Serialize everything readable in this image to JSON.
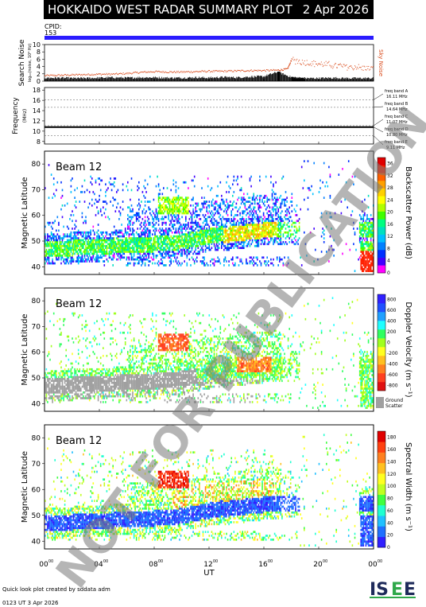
{
  "header": {
    "title": "HOKKAIDO WEST RADAR SUMMARY PLOT",
    "date": "2 Apr 2026",
    "cpid_label": "CPID:",
    "cpid_value": "153"
  },
  "colors": {
    "cpid_bar": "#2a1bff",
    "noise_line": "#000000",
    "sky_noise": "#d94a1a",
    "ground_scatter": "#a0a0a0"
  },
  "chart_data": [
    {
      "type": "line",
      "name": "search-noise",
      "ylabel": "Search Noise",
      "yunits": "log₁₀(noise, 10⁴ Hz)",
      "ylim": [
        0,
        10
      ],
      "ticks": [
        "0",
        "2",
        "4",
        "6",
        "8",
        "10"
      ],
      "tick_values": [
        0,
        2,
        4,
        6,
        8,
        10
      ],
      "xlim": [
        0,
        24
      ],
      "series": [
        {
          "name": "Search Noise",
          "x": [
            0,
            1,
            2,
            3,
            4,
            5,
            6,
            7,
            8,
            9,
            10,
            11,
            12,
            13,
            14,
            15,
            16,
            17,
            18,
            18.5,
            19,
            20,
            21,
            22,
            23,
            24
          ],
          "y": [
            0.6,
            0.6,
            0.5,
            0.5,
            0.6,
            0.7,
            0.6,
            0.7,
            0.7,
            0.6,
            0.6,
            0.7,
            0.6,
            0.8,
            0.7,
            0.9,
            1.0,
            2.2,
            0.8,
            0.6,
            0.5,
            0.5,
            0.6,
            0.5,
            0.5,
            0.5
          ]
        },
        {
          "name": "Sky Noise",
          "x": [
            0,
            1,
            2,
            3,
            4,
            5,
            6,
            7,
            8,
            9,
            10,
            11,
            12,
            13,
            14,
            15,
            16,
            17,
            17.7,
            18,
            19,
            20,
            21,
            22,
            23,
            24
          ],
          "y": [
            1.6,
            1.7,
            1.8,
            1.9,
            2.0,
            2.0,
            2.2,
            2.5,
            2.7,
            2.6,
            2.6,
            2.7,
            2.8,
            2.8,
            2.9,
            3.0,
            3.0,
            3.1,
            3.4,
            6.0,
            5.2,
            4.8,
            4.4,
            4.1,
            3.8,
            3.4
          ]
        }
      ],
      "legend_label": "Sky Noise"
    },
    {
      "type": "line",
      "name": "frequency",
      "ylabel": "Frequency",
      "yunits": "(MHz)",
      "ylim": [
        7.5,
        18.5
      ],
      "ticks": [
        "8",
        "10",
        "12",
        "14",
        "16",
        "18"
      ],
      "tick_values": [
        8,
        10,
        12,
        14,
        16,
        18
      ],
      "xlim": [
        0,
        24
      ],
      "bands": [
        {
          "label": "freq band A",
          "value": "16.11 MHz",
          "mhz": 16.11
        },
        {
          "label": "freq band B",
          "value": "14.64 MHz",
          "mhz": 14.64
        },
        {
          "label": "freq band C",
          "value": "11.07 MHz",
          "mhz": 11.07
        },
        {
          "label": "freq band D",
          "value": "10.80 MHz",
          "mhz": 10.8
        },
        {
          "label": "freq band E",
          "value": "9.11 MHz",
          "mhz": 9.11
        }
      ],
      "active_mhz": 10.8
    },
    {
      "type": "heatmap",
      "name": "backscatter-power",
      "beam": "Beam 12",
      "ylabel": "Magnetic Latitude",
      "ylim": [
        37,
        85
      ],
      "ticks": [
        "40",
        "50",
        "60",
        "70",
        "80"
      ],
      "tick_values": [
        40,
        50,
        60,
        70,
        80
      ],
      "colorbar_label": "Backscatter Power (dB)",
      "colorbar_ticks": [
        "0",
        "4",
        "8",
        "12",
        "16",
        "20",
        "24",
        "28",
        "32",
        "36"
      ],
      "colorbar_tick_values": [
        0,
        4,
        8,
        12,
        16,
        20,
        24,
        28,
        32,
        36
      ],
      "colorbar_range": [
        0,
        38
      ]
    },
    {
      "type": "heatmap",
      "name": "doppler-velocity",
      "beam": "Beam 12",
      "ylabel": "Magnetic Latitude",
      "ylim": [
        37,
        85
      ],
      "ticks": [
        "40",
        "50",
        "60",
        "70",
        "80"
      ],
      "tick_values": [
        40,
        50,
        60,
        70,
        80
      ],
      "colorbar_label": "Doppler Velocity (m s⁻¹)",
      "colorbar_ticks": [
        "800",
        "600",
        "400",
        "200",
        "0",
        "-200",
        "-400",
        "-600",
        "-800"
      ],
      "colorbar_tick_values": [
        800,
        600,
        400,
        200,
        0,
        -200,
        -400,
        -600,
        -800
      ],
      "colorbar_range": [
        -900,
        900
      ],
      "ground_scatter_label": [
        "Ground",
        "Scatter"
      ]
    },
    {
      "type": "heatmap",
      "name": "spectral-width",
      "beam": "Beam 12",
      "ylabel": "Magnetic Latitude",
      "ylim": [
        37,
        85
      ],
      "ticks": [
        "40",
        "50",
        "60",
        "70",
        "80"
      ],
      "tick_values": [
        40,
        50,
        60,
        70,
        80
      ],
      "colorbar_label": "Spectral Width (m s⁻¹)",
      "colorbar_ticks": [
        "0",
        "20",
        "40",
        "60",
        "80",
        "100",
        "120",
        "140",
        "160",
        "180"
      ],
      "colorbar_tick_values": [
        0,
        20,
        40,
        60,
        80,
        100,
        120,
        140,
        160,
        180
      ],
      "colorbar_range": [
        0,
        190
      ]
    }
  ],
  "xaxis": {
    "label": "UT",
    "xlim": [
      0,
      24
    ],
    "tick_hours": [
      0,
      4,
      8,
      12,
      16,
      20,
      24
    ],
    "tick_labels": [
      "00",
      "04",
      "08",
      "12",
      "16",
      "20",
      "00"
    ],
    "tick_sup": "00"
  },
  "footer": {
    "credit": "Quick look plot created by sddata adm",
    "timestamp": "0123 UT  3 Apr 2026",
    "logo": "ISEE"
  },
  "watermark": "NOT FOR PUBLICATION"
}
